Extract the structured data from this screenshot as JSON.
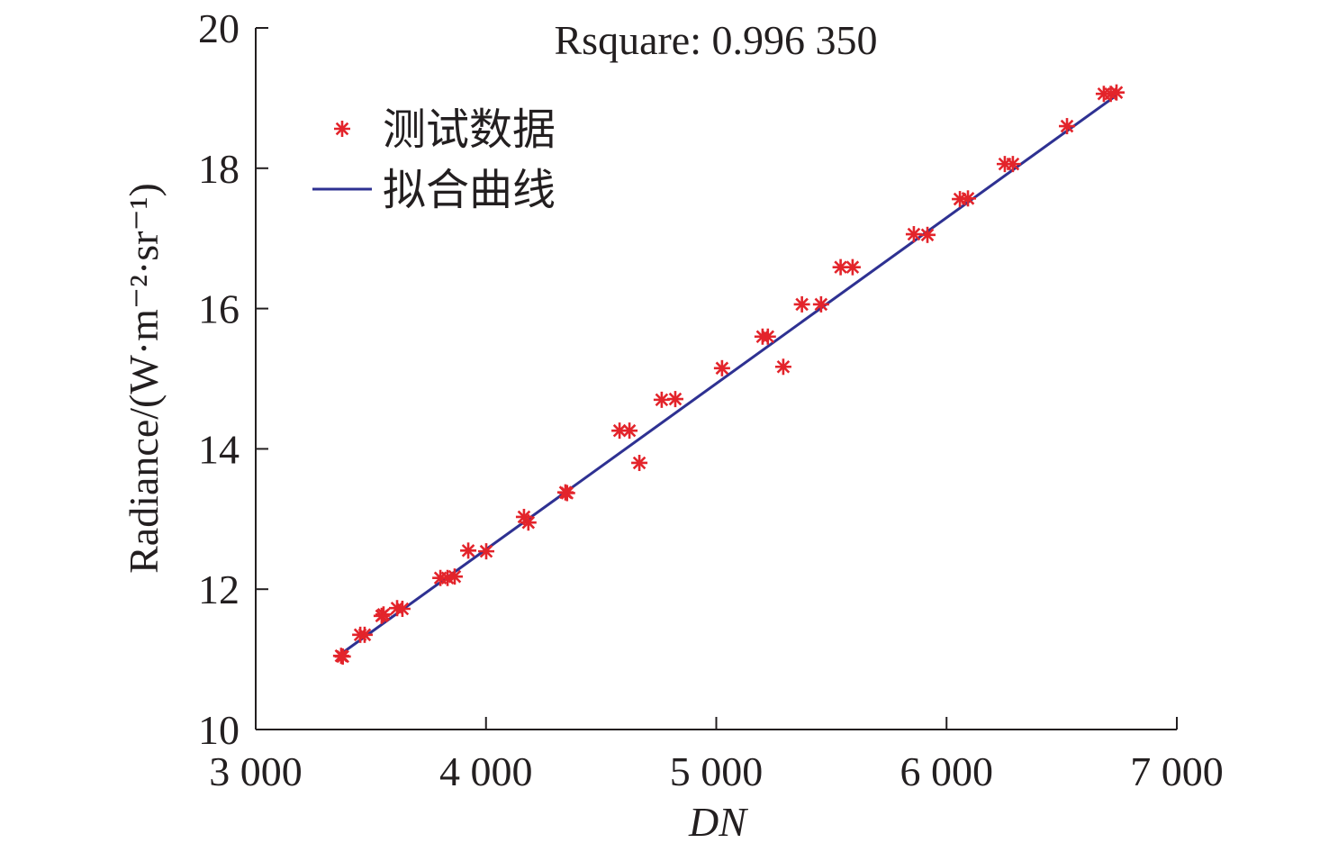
{
  "chart_data": {
    "type": "scatter",
    "title": "Rsquare: 0.996 350",
    "xlabel": "DN",
    "ylabel": "Radiance/(W·m⁻²·sr⁻¹)",
    "xlim": [
      3000,
      7000
    ],
    "ylim": [
      10,
      20
    ],
    "xticks": [
      3000,
      4000,
      5000,
      6000,
      7000
    ],
    "xtick_labels": [
      "3 000",
      "4 000",
      "5 000",
      "6 000",
      "7 000"
    ],
    "yticks": [
      10,
      12,
      14,
      16,
      18,
      20
    ],
    "ytick_labels": [
      "10",
      "12",
      "14",
      "16",
      "18",
      "20"
    ],
    "grid": false,
    "legend_position": "top-left",
    "series": [
      {
        "name": "测试数据",
        "kind": "scatter",
        "color": "#e3242b",
        "marker": "asterisk",
        "points": [
          [
            3371,
            11.05
          ],
          [
            3378,
            11.04
          ],
          [
            3454,
            11.35
          ],
          [
            3473,
            11.35
          ],
          [
            3547,
            11.62
          ],
          [
            3555,
            11.64
          ],
          [
            3614,
            11.73
          ],
          [
            3637,
            11.72
          ],
          [
            3802,
            12.16
          ],
          [
            3833,
            12.16
          ],
          [
            3864,
            12.18
          ],
          [
            3923,
            12.55
          ],
          [
            4001,
            12.54
          ],
          [
            4165,
            13.03
          ],
          [
            4184,
            12.95
          ],
          [
            4345,
            13.38
          ],
          [
            4352,
            13.37
          ],
          [
            4580,
            14.26
          ],
          [
            4623,
            14.26
          ],
          [
            4666,
            13.8
          ],
          [
            4763,
            14.7
          ],
          [
            4822,
            14.71
          ],
          [
            5025,
            15.15
          ],
          [
            5201,
            15.6
          ],
          [
            5224,
            15.6
          ],
          [
            5291,
            15.17
          ],
          [
            5372,
            16.06
          ],
          [
            5455,
            16.06
          ],
          [
            5540,
            16.59
          ],
          [
            5592,
            16.59
          ],
          [
            5858,
            17.06
          ],
          [
            5917,
            17.05
          ],
          [
            6058,
            17.56
          ],
          [
            6093,
            17.57
          ],
          [
            6253,
            18.06
          ],
          [
            6288,
            18.06
          ],
          [
            6523,
            18.6
          ],
          [
            6683,
            19.06
          ],
          [
            6713,
            19.06
          ],
          [
            6738,
            19.08
          ]
        ]
      },
      {
        "name": "拟合曲线",
        "kind": "line",
        "color": "#2e3192",
        "points": [
          [
            3371,
            11.08
          ],
          [
            6738,
            19.04
          ]
        ]
      }
    ]
  }
}
